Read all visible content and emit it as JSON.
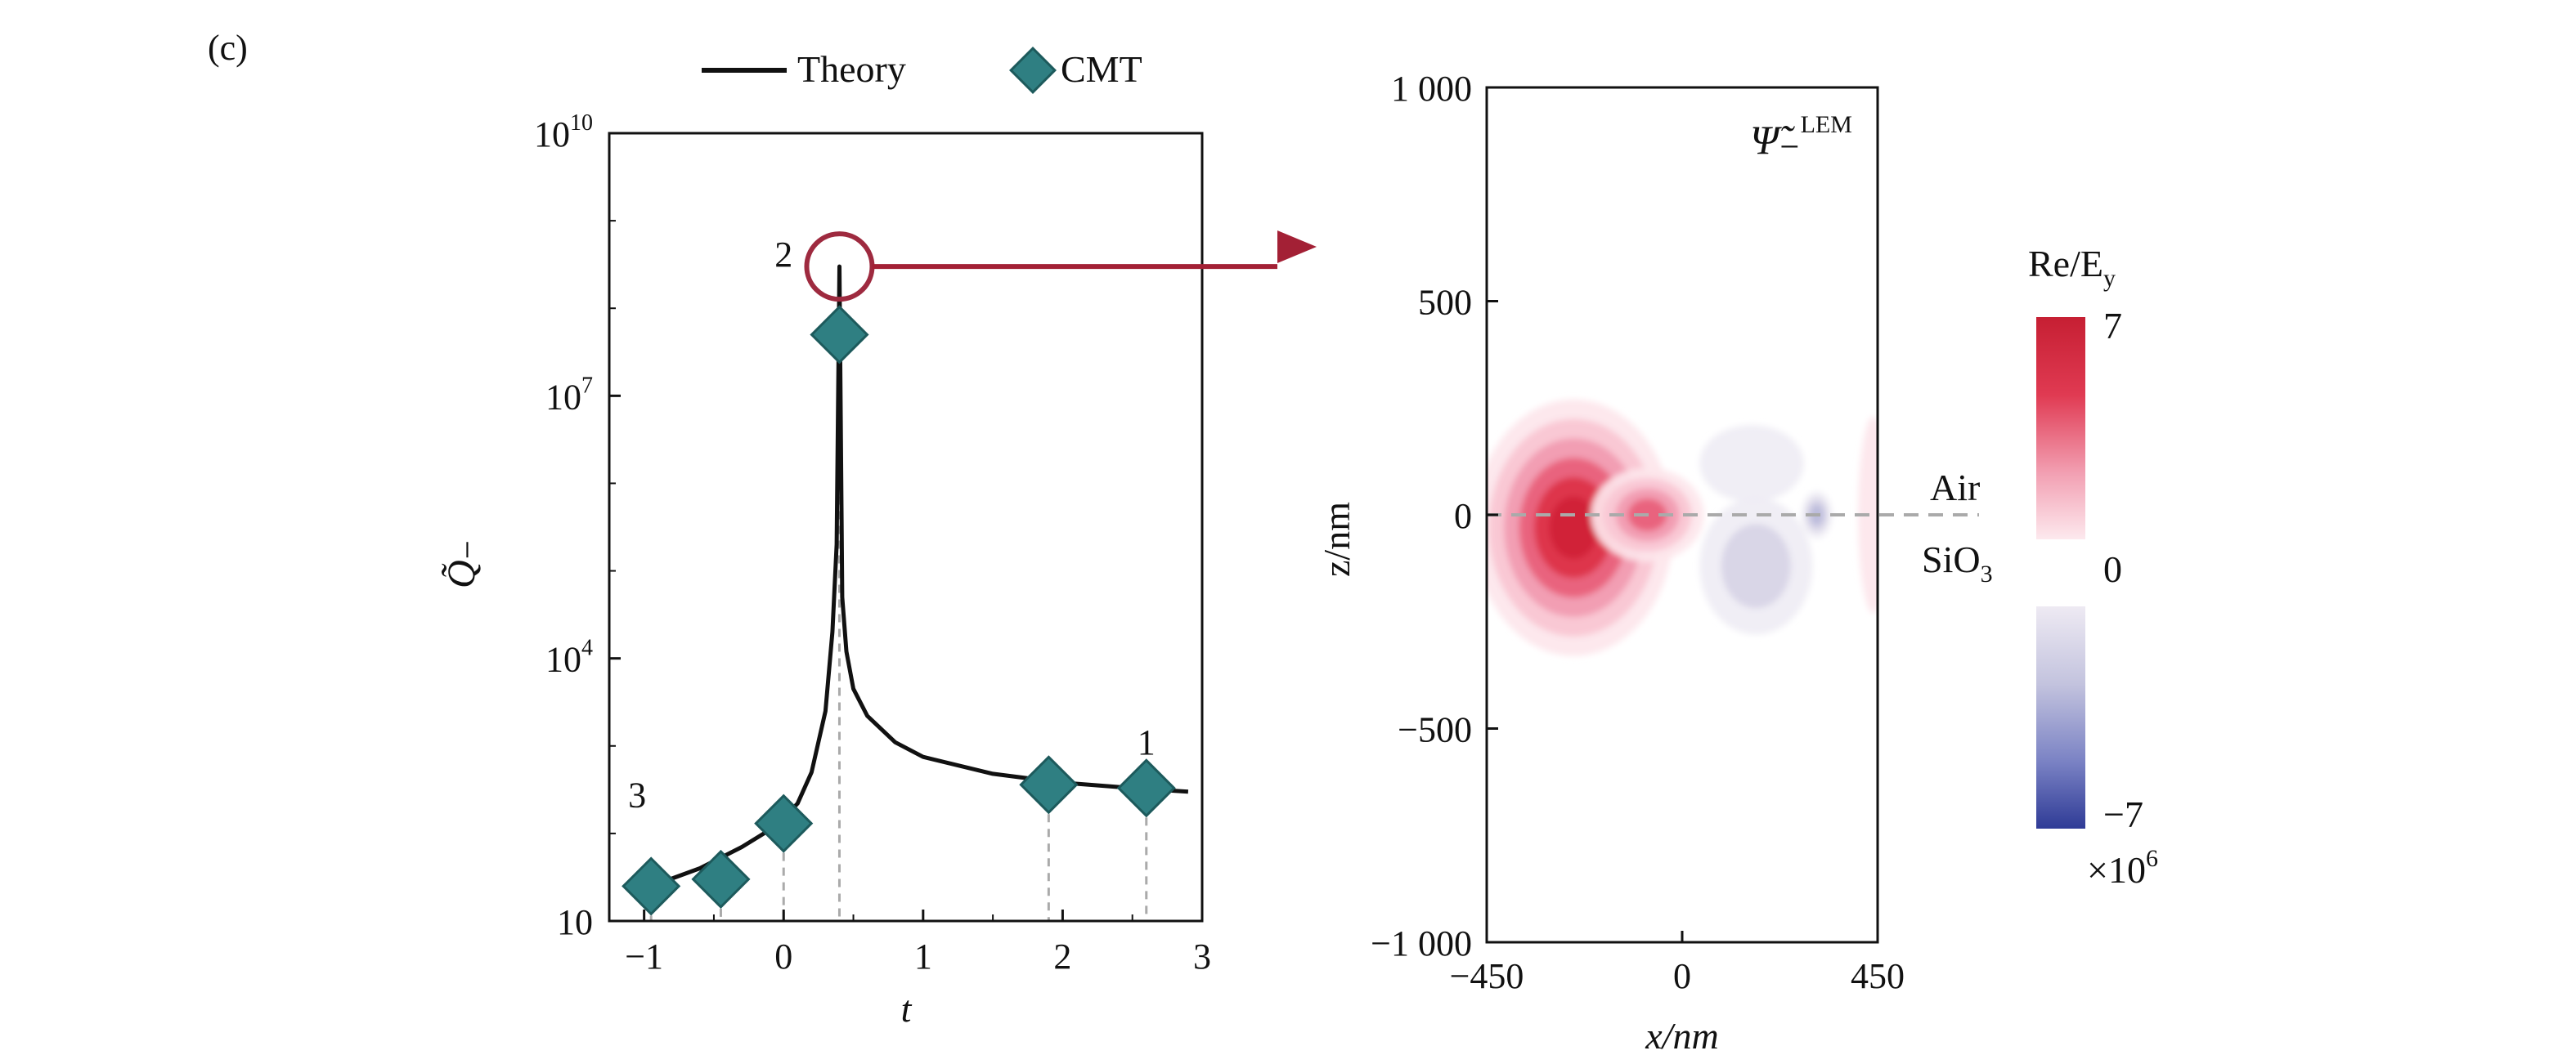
{
  "panel_label": "(c)",
  "legend": {
    "theory_label": "Theory",
    "cmt_label": "CMT"
  },
  "colors": {
    "theory_line": "#111111",
    "cmt_marker": "#2f7f82",
    "marker_edge": "#1d5a5c",
    "highlight_circle": "#9e2a3f",
    "arrow": "#a32035",
    "field_positive": "#d8283c",
    "field_negative": "#3444a0",
    "grid_dashed": "#aaaaaa"
  },
  "chart_data": [
    {
      "type": "line",
      "x_scale": "linear",
      "y_scale": "log",
      "xlabel": "t",
      "ylabel": "Q̃₋",
      "xlim": [
        -1.25,
        3.0
      ],
      "ylim": [
        10,
        10000000000
      ],
      "xticks": [
        -1,
        0,
        1,
        2,
        3
      ],
      "xtick_labels": [
        "−1",
        "0",
        "1",
        "2",
        "3"
      ],
      "yticks": [
        10,
        10000,
        10000000,
        10000000000
      ],
      "ytick_labels": [
        {
          "base": "10",
          "exp": ""
        },
        {
          "base": "10",
          "exp": "4"
        },
        {
          "base": "10",
          "exp": "7"
        },
        {
          "base": "10",
          "exp": "10"
        }
      ],
      "series": [
        {
          "name": "Theory",
          "style": "line",
          "x": [
            -0.95,
            -0.6,
            -0.3,
            -0.1,
            0.0,
            0.1,
            0.2,
            0.3,
            0.35,
            0.38,
            0.4,
            0.42,
            0.45,
            0.5,
            0.6,
            0.8,
            1.0,
            1.5,
            2.0,
            2.5,
            2.9
          ],
          "y": [
            25,
            40,
            70,
            110,
            150,
            220,
            500,
            2500,
            20000,
            200000,
            300000000,
            50000,
            12000,
            4500,
            2200,
            1100,
            750,
            480,
            380,
            330,
            300
          ]
        },
        {
          "name": "CMT",
          "style": "marker",
          "x": [
            -0.95,
            -0.45,
            0.0,
            0.4,
            1.9,
            2.6
          ],
          "y": [
            25,
            30,
            130,
            50000000,
            360,
            330
          ]
        }
      ],
      "annotations": [
        {
          "text": "3",
          "x": -1.05,
          "y": 200
        },
        {
          "text": "2",
          "x": 0.0,
          "y": 300000000
        },
        {
          "text": "1",
          "x": 2.6,
          "y": 800
        }
      ],
      "dashed_droplines_x": [
        -0.95,
        -0.45,
        0.0,
        0.4,
        1.9,
        2.6
      ],
      "highlight": {
        "x": 0.4,
        "y": 300000000
      }
    },
    {
      "type": "heatmap",
      "title": "Ψ̃₋",
      "title_sup": "LEM",
      "xlabel": "x/nm",
      "ylabel": "z/nm",
      "xlim": [
        -450,
        450
      ],
      "ylim": [
        -1000,
        1000
      ],
      "xticks": [
        -450,
        0,
        450
      ],
      "xtick_labels": [
        "−450",
        "0",
        "450"
      ],
      "yticks": [
        -1000,
        -500,
        0,
        500,
        1000
      ],
      "ytick_labels": [
        "−1 000",
        "−500",
        "0",
        "500",
        "1 000"
      ],
      "interface_z": 0,
      "region_labels": {
        "upper": "Air",
        "lower_base": "SiO",
        "lower_sub": "3"
      },
      "lobes": [
        {
          "cx": -250,
          "cz": -30,
          "rx": 230,
          "rz": 300,
          "sign": 1,
          "amp": 7
        },
        {
          "cx": -80,
          "cz": 0,
          "rx": 130,
          "rz": 110,
          "sign": 1,
          "amp": 5
        },
        {
          "cx": 170,
          "cz": -120,
          "rx": 130,
          "rz": 160,
          "sign": -1,
          "amp": 2
        },
        {
          "cx": 160,
          "cz": 120,
          "rx": 120,
          "rz": 90,
          "sign": -1,
          "amp": 0.8
        },
        {
          "cx": 310,
          "cz": 0,
          "rx": 35,
          "rz": 55,
          "sign": -1,
          "amp": 3
        },
        {
          "cx": 440,
          "cz": 0,
          "rx": 35,
          "rz": 230,
          "sign": 1,
          "amp": 1.2
        }
      ]
    }
  ],
  "colorbar": {
    "label_base": "Re/E",
    "label_sub": "y",
    "max_label": "7",
    "mid_label": "0",
    "min_label": "−7",
    "multiplier_base": "×10",
    "multiplier_exp": "6"
  }
}
